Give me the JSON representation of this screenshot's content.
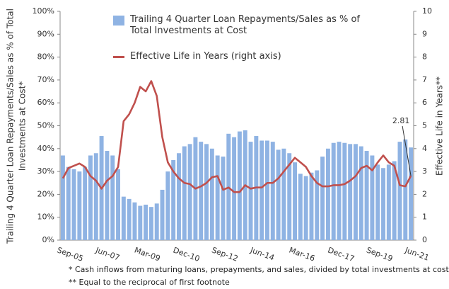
{
  "chart_data": {
    "type": "bar_line",
    "y_label": [
      "Trailing 4 Quarter Loan Repayments/Sales as % of Total",
      "Investments at Cost*"
    ],
    "y2_label": "Effective Life in Years**",
    "categories": [
      "Sep-05",
      null,
      null,
      null,
      null,
      null,
      null,
      "Jun-07",
      null,
      null,
      null,
      null,
      null,
      null,
      "Mar-09",
      null,
      null,
      null,
      null,
      null,
      null,
      "Dec-10",
      null,
      null,
      null,
      null,
      null,
      null,
      "Sep-12",
      null,
      null,
      null,
      null,
      null,
      null,
      "Jun-14",
      null,
      null,
      null,
      null,
      null,
      null,
      "Mar-16",
      null,
      null,
      null,
      null,
      null,
      null,
      "Dec-17",
      null,
      null,
      null,
      null,
      null,
      null,
      "Sep-19",
      null,
      null,
      null,
      null,
      null,
      null,
      "Jun-21"
    ],
    "series": [
      {
        "name": "Trailing 4 Quarter Loan Repayments/Sales as % of Total Investments at Cost",
        "type": "bar",
        "color": "#8fb3e3",
        "values": [
          37,
          32,
          31,
          30,
          32,
          37,
          38,
          45.5,
          39,
          37,
          31,
          19,
          18,
          16.5,
          15,
          15.5,
          14.5,
          16,
          22,
          30,
          35,
          38,
          41,
          42,
          45,
          43,
          42,
          40,
          37,
          36.5,
          46.5,
          45,
          47.5,
          48,
          43,
          45.5,
          43.5,
          43.5,
          43,
          39.5,
          40,
          38,
          34,
          29,
          28,
          29.5,
          30.5,
          36.5,
          40,
          42.5,
          43,
          42.5,
          42,
          42,
          41,
          39,
          37,
          33,
          31.5,
          33,
          34.5,
          43,
          44,
          40.5
        ]
      },
      {
        "name": "Effective Life in Years (right axis)",
        "type": "line",
        "axis": "y2",
        "color": "#c0504d",
        "values": [
          2.7,
          3.15,
          3.25,
          3.35,
          3.2,
          2.8,
          2.6,
          2.25,
          2.6,
          2.8,
          3.2,
          5.2,
          5.5,
          6.0,
          6.7,
          6.5,
          6.95,
          6.3,
          4.5,
          3.4,
          3.0,
          2.7,
          2.5,
          2.45,
          2.25,
          2.35,
          2.5,
          2.75,
          2.8,
          2.2,
          2.3,
          2.1,
          2.1,
          2.4,
          2.25,
          2.3,
          2.3,
          2.5,
          2.5,
          2.7,
          3.0,
          3.3,
          3.6,
          3.4,
          3.2,
          2.8,
          2.5,
          2.35,
          2.35,
          2.4,
          2.4,
          2.45,
          2.6,
          2.8,
          3.15,
          3.25,
          3.05,
          3.4,
          3.7,
          3.4,
          3.25,
          2.4,
          2.35,
          2.81
        ]
      }
    ],
    "ylim": [
      0,
      100
    ],
    "yticks": [
      {
        "value": 0,
        "label": "0%"
      },
      {
        "value": 10,
        "label": "10%"
      },
      {
        "value": 20,
        "label": "20%"
      },
      {
        "value": 30,
        "label": "30%"
      },
      {
        "value": 40,
        "label": "40%"
      },
      {
        "value": 50,
        "label": "50%"
      },
      {
        "value": 60,
        "label": "60%"
      },
      {
        "value": 70,
        "label": "70%"
      },
      {
        "value": 80,
        "label": "80%"
      },
      {
        "value": 90,
        "label": "90%"
      },
      {
        "value": 100,
        "label": "100%"
      }
    ],
    "y2lim": [
      0,
      10
    ],
    "y2ticks": [
      0,
      1,
      2,
      3,
      4,
      5,
      6,
      7,
      8,
      9,
      10
    ],
    "footnotes": [
      "*  Cash inflows from maturing loans, prepayments, and sales, divided by total  investments at cost",
      "** Equal to the reciprocal of  first footnote"
    ]
  }
}
